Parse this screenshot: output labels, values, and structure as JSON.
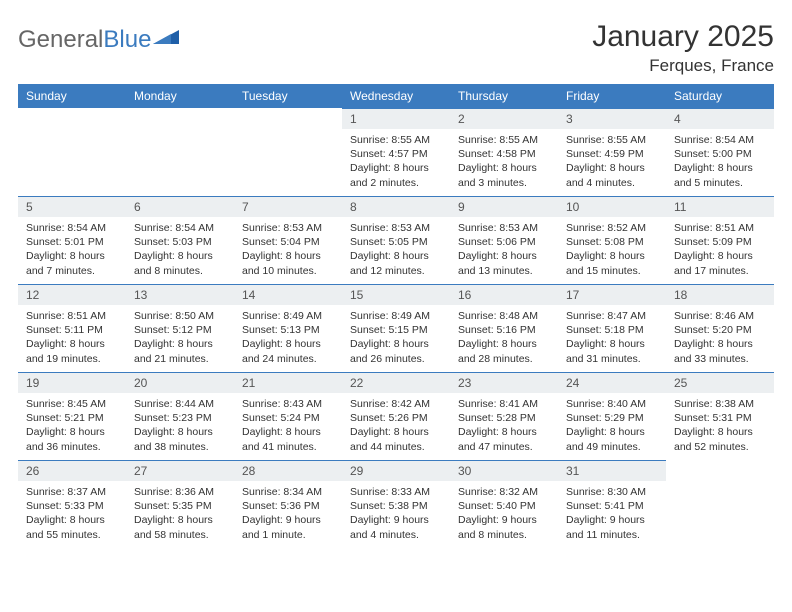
{
  "logo": {
    "part1": "General",
    "part2": "Blue"
  },
  "header": {
    "title": "January 2025",
    "location": "Ferques, France"
  },
  "colors": {
    "header_bg": "#3b7bbf",
    "header_text": "#ffffff",
    "daynum_bg": "#eceff1",
    "border": "#3b7bbf",
    "text": "#333333"
  },
  "dayHeaders": [
    "Sunday",
    "Monday",
    "Tuesday",
    "Wednesday",
    "Thursday",
    "Friday",
    "Saturday"
  ],
  "weeks": [
    [
      {
        "n": "",
        "sr": "",
        "ss": "",
        "dl": ""
      },
      {
        "n": "",
        "sr": "",
        "ss": "",
        "dl": ""
      },
      {
        "n": "",
        "sr": "",
        "ss": "",
        "dl": ""
      },
      {
        "n": "1",
        "sr": "Sunrise: 8:55 AM",
        "ss": "Sunset: 4:57 PM",
        "dl": "Daylight: 8 hours and 2 minutes."
      },
      {
        "n": "2",
        "sr": "Sunrise: 8:55 AM",
        "ss": "Sunset: 4:58 PM",
        "dl": "Daylight: 8 hours and 3 minutes."
      },
      {
        "n": "3",
        "sr": "Sunrise: 8:55 AM",
        "ss": "Sunset: 4:59 PM",
        "dl": "Daylight: 8 hours and 4 minutes."
      },
      {
        "n": "4",
        "sr": "Sunrise: 8:54 AM",
        "ss": "Sunset: 5:00 PM",
        "dl": "Daylight: 8 hours and 5 minutes."
      }
    ],
    [
      {
        "n": "5",
        "sr": "Sunrise: 8:54 AM",
        "ss": "Sunset: 5:01 PM",
        "dl": "Daylight: 8 hours and 7 minutes."
      },
      {
        "n": "6",
        "sr": "Sunrise: 8:54 AM",
        "ss": "Sunset: 5:03 PM",
        "dl": "Daylight: 8 hours and 8 minutes."
      },
      {
        "n": "7",
        "sr": "Sunrise: 8:53 AM",
        "ss": "Sunset: 5:04 PM",
        "dl": "Daylight: 8 hours and 10 minutes."
      },
      {
        "n": "8",
        "sr": "Sunrise: 8:53 AM",
        "ss": "Sunset: 5:05 PM",
        "dl": "Daylight: 8 hours and 12 minutes."
      },
      {
        "n": "9",
        "sr": "Sunrise: 8:53 AM",
        "ss": "Sunset: 5:06 PM",
        "dl": "Daylight: 8 hours and 13 minutes."
      },
      {
        "n": "10",
        "sr": "Sunrise: 8:52 AM",
        "ss": "Sunset: 5:08 PM",
        "dl": "Daylight: 8 hours and 15 minutes."
      },
      {
        "n": "11",
        "sr": "Sunrise: 8:51 AM",
        "ss": "Sunset: 5:09 PM",
        "dl": "Daylight: 8 hours and 17 minutes."
      }
    ],
    [
      {
        "n": "12",
        "sr": "Sunrise: 8:51 AM",
        "ss": "Sunset: 5:11 PM",
        "dl": "Daylight: 8 hours and 19 minutes."
      },
      {
        "n": "13",
        "sr": "Sunrise: 8:50 AM",
        "ss": "Sunset: 5:12 PM",
        "dl": "Daylight: 8 hours and 21 minutes."
      },
      {
        "n": "14",
        "sr": "Sunrise: 8:49 AM",
        "ss": "Sunset: 5:13 PM",
        "dl": "Daylight: 8 hours and 24 minutes."
      },
      {
        "n": "15",
        "sr": "Sunrise: 8:49 AM",
        "ss": "Sunset: 5:15 PM",
        "dl": "Daylight: 8 hours and 26 minutes."
      },
      {
        "n": "16",
        "sr": "Sunrise: 8:48 AM",
        "ss": "Sunset: 5:16 PM",
        "dl": "Daylight: 8 hours and 28 minutes."
      },
      {
        "n": "17",
        "sr": "Sunrise: 8:47 AM",
        "ss": "Sunset: 5:18 PM",
        "dl": "Daylight: 8 hours and 31 minutes."
      },
      {
        "n": "18",
        "sr": "Sunrise: 8:46 AM",
        "ss": "Sunset: 5:20 PM",
        "dl": "Daylight: 8 hours and 33 minutes."
      }
    ],
    [
      {
        "n": "19",
        "sr": "Sunrise: 8:45 AM",
        "ss": "Sunset: 5:21 PM",
        "dl": "Daylight: 8 hours and 36 minutes."
      },
      {
        "n": "20",
        "sr": "Sunrise: 8:44 AM",
        "ss": "Sunset: 5:23 PM",
        "dl": "Daylight: 8 hours and 38 minutes."
      },
      {
        "n": "21",
        "sr": "Sunrise: 8:43 AM",
        "ss": "Sunset: 5:24 PM",
        "dl": "Daylight: 8 hours and 41 minutes."
      },
      {
        "n": "22",
        "sr": "Sunrise: 8:42 AM",
        "ss": "Sunset: 5:26 PM",
        "dl": "Daylight: 8 hours and 44 minutes."
      },
      {
        "n": "23",
        "sr": "Sunrise: 8:41 AM",
        "ss": "Sunset: 5:28 PM",
        "dl": "Daylight: 8 hours and 47 minutes."
      },
      {
        "n": "24",
        "sr": "Sunrise: 8:40 AM",
        "ss": "Sunset: 5:29 PM",
        "dl": "Daylight: 8 hours and 49 minutes."
      },
      {
        "n": "25",
        "sr": "Sunrise: 8:38 AM",
        "ss": "Sunset: 5:31 PM",
        "dl": "Daylight: 8 hours and 52 minutes."
      }
    ],
    [
      {
        "n": "26",
        "sr": "Sunrise: 8:37 AM",
        "ss": "Sunset: 5:33 PM",
        "dl": "Daylight: 8 hours and 55 minutes."
      },
      {
        "n": "27",
        "sr": "Sunrise: 8:36 AM",
        "ss": "Sunset: 5:35 PM",
        "dl": "Daylight: 8 hours and 58 minutes."
      },
      {
        "n": "28",
        "sr": "Sunrise: 8:34 AM",
        "ss": "Sunset: 5:36 PM",
        "dl": "Daylight: 9 hours and 1 minute."
      },
      {
        "n": "29",
        "sr": "Sunrise: 8:33 AM",
        "ss": "Sunset: 5:38 PM",
        "dl": "Daylight: 9 hours and 4 minutes."
      },
      {
        "n": "30",
        "sr": "Sunrise: 8:32 AM",
        "ss": "Sunset: 5:40 PM",
        "dl": "Daylight: 9 hours and 8 minutes."
      },
      {
        "n": "31",
        "sr": "Sunrise: 8:30 AM",
        "ss": "Sunset: 5:41 PM",
        "dl": "Daylight: 9 hours and 11 minutes."
      },
      {
        "n": "",
        "sr": "",
        "ss": "",
        "dl": ""
      }
    ]
  ]
}
